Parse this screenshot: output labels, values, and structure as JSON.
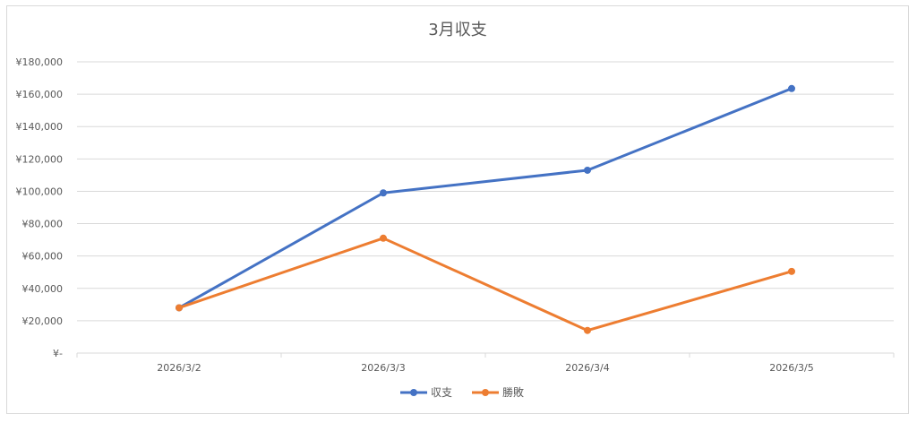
{
  "chart_data": {
    "type": "line",
    "title": "3月収支",
    "categories": [
      "2026/3/2",
      "2026/3/3",
      "2026/3/4",
      "2026/3/5"
    ],
    "series": [
      {
        "name": "収支",
        "color": "#4472C4",
        "values": [
          28000,
          99000,
          113000,
          163500
        ]
      },
      {
        "name": "勝敗",
        "color": "#ED7D31",
        "values": [
          28000,
          71000,
          14000,
          50500
        ]
      }
    ],
    "ylim": [
      0,
      180000
    ],
    "yticks": [
      0,
      20000,
      40000,
      60000,
      80000,
      100000,
      120000,
      140000,
      160000,
      180000
    ],
    "ytick_labels": [
      "¥-",
      "¥20,000",
      "¥40,000",
      "¥60,000",
      "¥80,000",
      "¥100,000",
      "¥120,000",
      "¥140,000",
      "¥160,000",
      "¥180,000"
    ],
    "grid": true,
    "legend_position": "bottom"
  }
}
